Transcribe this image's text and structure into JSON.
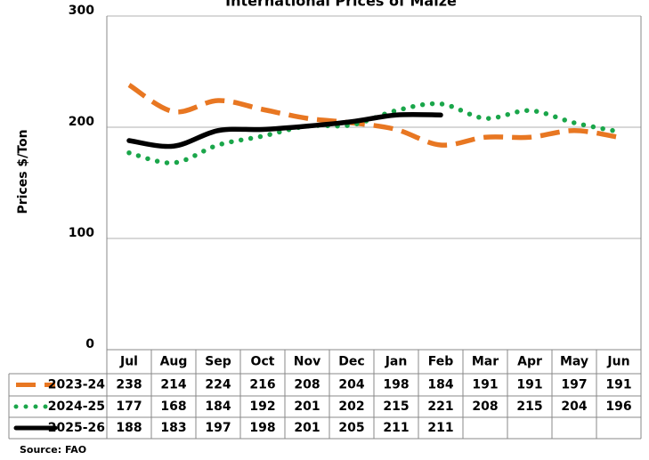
{
  "chart_data": {
    "type": "line",
    "title": "International Prices of Maize",
    "y_label": "Prices $/Ton",
    "source": "Source: FAO",
    "categories": [
      "Jul",
      "Aug",
      "Sep",
      "Oct",
      "Nov",
      "Dec",
      "Jan",
      "Feb",
      "Mar",
      "Apr",
      "May",
      "Jun"
    ],
    "series": [
      {
        "name": "2023-24",
        "color": "#e87722",
        "style": "dashed",
        "values": [
          238,
          214,
          224,
          216,
          208,
          204,
          198,
          184,
          191,
          191,
          197,
          191
        ]
      },
      {
        "name": "2024-25",
        "color": "#1aa64a",
        "style": "dotted",
        "values": [
          177,
          168,
          184,
          192,
          201,
          202,
          215,
          221,
          208,
          215,
          204,
          196
        ]
      },
      {
        "name": "2025-26",
        "color": "#000000",
        "style": "solid",
        "values": [
          188,
          183,
          197,
          198,
          201,
          205,
          211,
          211,
          null,
          null,
          null,
          null
        ]
      }
    ],
    "ylim": [
      0,
      300
    ],
    "yticks": [
      0,
      100,
      200,
      300
    ],
    "grid": true
  }
}
